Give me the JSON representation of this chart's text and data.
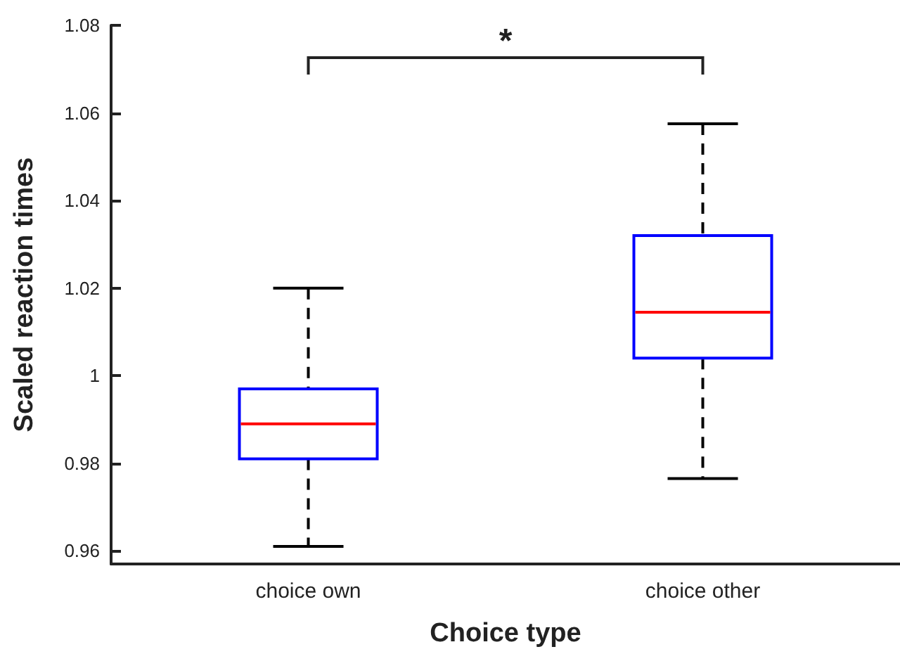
{
  "chart_data": {
    "type": "box",
    "xlabel": "Choice type",
    "ylabel": "Scaled reaction times",
    "categories": [
      "choice own",
      "choice other"
    ],
    "series": [
      {
        "color": "#0000ff",
        "boxes": [
          {
            "low": 0.961,
            "q1": 0.981,
            "median": 0.989,
            "q3": 0.997,
            "high": 1.02
          },
          {
            "low": 0.9765,
            "q1": 1.004,
            "median": 1.0145,
            "q3": 1.032,
            "high": 1.0575
          }
        ]
      }
    ],
    "ylim": [
      0.957,
      1.08
    ],
    "yticks": [
      0.96,
      0.98,
      1.0,
      1.02,
      1.04,
      1.06,
      1.08
    ],
    "annotations": [
      "*"
    ]
  }
}
